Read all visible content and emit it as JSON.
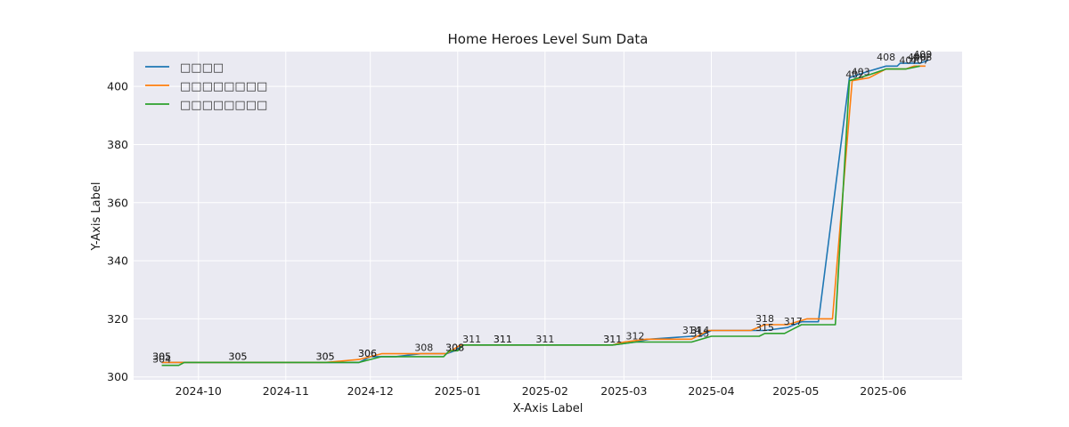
{
  "chart_data": {
    "type": "line",
    "title": "Home Heroes Level Sum Data",
    "xlabel": "X-Axis Label",
    "ylabel": "Y-Axis Label",
    "x_type": "date",
    "xlim": [
      "2024-09-08",
      "2025-06-29"
    ],
    "ylim": [
      299,
      412
    ],
    "x_ticks": [
      "2024-10",
      "2024-11",
      "2024-12",
      "2025-01",
      "2025-02",
      "2025-03",
      "2025-04",
      "2025-05",
      "2025-06"
    ],
    "y_ticks": [
      300,
      320,
      340,
      360,
      380,
      400
    ],
    "grid": true,
    "legend_position": "top-left",
    "colors": [
      "#1f77b4",
      "#ff7f0e",
      "#2ca02c"
    ],
    "legend": [
      "□□□□",
      "□□□□□□□□",
      "□□□□□□□□"
    ],
    "series": [
      {
        "name": "□□□□",
        "color": "#1f77b4",
        "points": [
          [
            "2024-09-18",
            305
          ],
          [
            "2024-09-23",
            305
          ],
          [
            "2024-09-26",
            305
          ],
          [
            "2024-10-15",
            305
          ],
          [
            "2024-11-15",
            305
          ],
          [
            "2024-11-27",
            305
          ],
          [
            "2024-12-01",
            307
          ],
          [
            "2024-12-10",
            307
          ],
          [
            "2024-12-19",
            308
          ],
          [
            "2024-12-28",
            308
          ],
          [
            "2024-12-31",
            309
          ],
          [
            "2025-01-03",
            311
          ],
          [
            "2025-01-17",
            311
          ],
          [
            "2025-02-01",
            311
          ],
          [
            "2025-02-25",
            311
          ],
          [
            "2025-03-05",
            312
          ],
          [
            "2025-03-10",
            313
          ],
          [
            "2025-03-25",
            314
          ],
          [
            "2025-03-28",
            314
          ],
          [
            "2025-04-01",
            316
          ],
          [
            "2025-04-15",
            316
          ],
          [
            "2025-04-20",
            316
          ],
          [
            "2025-04-28",
            317
          ],
          [
            "2025-05-03",
            319
          ],
          [
            "2025-05-09",
            319
          ],
          [
            "2025-05-20",
            403
          ],
          [
            "2025-05-26",
            405
          ],
          [
            "2025-06-02",
            407
          ],
          [
            "2025-06-06",
            407
          ],
          [
            "2025-06-07",
            408
          ],
          [
            "2025-06-14",
            408
          ],
          [
            "2025-06-17",
            409
          ]
        ]
      },
      {
        "name": "□□□□□□□□",
        "color": "#ff7f0e",
        "points": [
          [
            "2024-09-18",
            305
          ],
          [
            "2024-09-23",
            305
          ],
          [
            "2024-09-26",
            305
          ],
          [
            "2024-10-15",
            305
          ],
          [
            "2024-11-15",
            305
          ],
          [
            "2024-11-27",
            306
          ],
          [
            "2024-12-05",
            308
          ],
          [
            "2024-12-16",
            308
          ],
          [
            "2024-12-28",
            308
          ],
          [
            "2025-01-02",
            311
          ],
          [
            "2025-01-17",
            311
          ],
          [
            "2025-02-01",
            311
          ],
          [
            "2025-02-25",
            311
          ],
          [
            "2025-03-01",
            312
          ],
          [
            "2025-03-09",
            313
          ],
          [
            "2025-03-20",
            313
          ],
          [
            "2025-03-25",
            313
          ],
          [
            "2025-03-31",
            316
          ],
          [
            "2025-04-15",
            316
          ],
          [
            "2025-04-20",
            318
          ],
          [
            "2025-04-28",
            318
          ],
          [
            "2025-05-05",
            320
          ],
          [
            "2025-05-14",
            320
          ],
          [
            "2025-05-21",
            402
          ],
          [
            "2025-05-27",
            403
          ],
          [
            "2025-06-02",
            406
          ],
          [
            "2025-06-07",
            406
          ],
          [
            "2025-06-09",
            406
          ],
          [
            "2025-06-12",
            407
          ],
          [
            "2025-06-16",
            407
          ]
        ]
      },
      {
        "name": "□□□□□□□□",
        "color": "#2ca02c",
        "points": [
          [
            "2024-09-18",
            304
          ],
          [
            "2024-09-24",
            304
          ],
          [
            "2024-09-26",
            305
          ],
          [
            "2024-10-15",
            305
          ],
          [
            "2024-11-15",
            305
          ],
          [
            "2024-11-27",
            305
          ],
          [
            "2024-12-01",
            306
          ],
          [
            "2024-12-05",
            307
          ],
          [
            "2024-12-16",
            307
          ],
          [
            "2024-12-27",
            307
          ],
          [
            "2024-12-29",
            309
          ],
          [
            "2025-01-01",
            309
          ],
          [
            "2025-01-03",
            311
          ],
          [
            "2025-01-17",
            311
          ],
          [
            "2025-02-01",
            311
          ],
          [
            "2025-02-25",
            311
          ],
          [
            "2025-03-05",
            312
          ],
          [
            "2025-03-25",
            312
          ],
          [
            "2025-04-01",
            314
          ],
          [
            "2025-04-18",
            314
          ],
          [
            "2025-04-20",
            315
          ],
          [
            "2025-04-27",
            315
          ],
          [
            "2025-05-03",
            318
          ],
          [
            "2025-05-15",
            318
          ],
          [
            "2025-05-20",
            402
          ],
          [
            "2025-05-27",
            404
          ],
          [
            "2025-06-02",
            406
          ],
          [
            "2025-06-09",
            406
          ],
          [
            "2025-06-14",
            407
          ]
        ]
      }
    ],
    "annotations": [
      {
        "x": "2024-09-18",
        "y": 305,
        "text": "305"
      },
      {
        "x": "2024-09-18",
        "y": 305,
        "text": "305"
      },
      {
        "x": "2024-09-18",
        "y": 304,
        "text": "304"
      },
      {
        "x": "2024-10-15",
        "y": 305,
        "text": "305"
      },
      {
        "x": "2024-10-15",
        "y": 305,
        "text": "305"
      },
      {
        "x": "2024-11-15",
        "y": 305,
        "text": "305"
      },
      {
        "x": "2024-11-15",
        "y": 305,
        "text": "305"
      },
      {
        "x": "2024-11-30",
        "y": 306,
        "text": "306"
      },
      {
        "x": "2024-11-30",
        "y": 306,
        "text": "306"
      },
      {
        "x": "2024-12-20",
        "y": 308,
        "text": "308"
      },
      {
        "x": "2024-12-31",
        "y": 308,
        "text": "308"
      },
      {
        "x": "2024-12-31",
        "y": 308,
        "text": "308"
      },
      {
        "x": "2025-01-06",
        "y": 311,
        "text": "311"
      },
      {
        "x": "2025-01-17",
        "y": 311,
        "text": "311"
      },
      {
        "x": "2025-01-17",
        "y": 311,
        "text": "311"
      },
      {
        "x": "2025-02-01",
        "y": 311,
        "text": "311"
      },
      {
        "x": "2025-02-25",
        "y": 311,
        "text": "311"
      },
      {
        "x": "2025-02-25",
        "y": 311,
        "text": "311"
      },
      {
        "x": "2025-03-05",
        "y": 312,
        "text": "312"
      },
      {
        "x": "2025-03-25",
        "y": 314,
        "text": "314"
      },
      {
        "x": "2025-03-28",
        "y": 314,
        "text": "314"
      },
      {
        "x": "2025-03-28",
        "y": 313,
        "text": "313"
      },
      {
        "x": "2025-04-20",
        "y": 318,
        "text": "318"
      },
      {
        "x": "2025-04-20",
        "y": 315,
        "text": "315"
      },
      {
        "x": "2025-04-30",
        "y": 317,
        "text": "317"
      },
      {
        "x": "2025-05-22",
        "y": 402,
        "text": "402"
      },
      {
        "x": "2025-05-24",
        "y": 403,
        "text": "403"
      },
      {
        "x": "2025-06-02",
        "y": 408,
        "text": "408"
      },
      {
        "x": "2025-06-10",
        "y": 407,
        "text": "407"
      },
      {
        "x": "2025-06-13",
        "y": 408,
        "text": "408"
      },
      {
        "x": "2025-06-15",
        "y": 409,
        "text": "409"
      },
      {
        "x": "2025-06-14",
        "y": 407,
        "text": "407"
      },
      {
        "x": "2025-06-15",
        "y": 408,
        "text": "408"
      }
    ]
  }
}
